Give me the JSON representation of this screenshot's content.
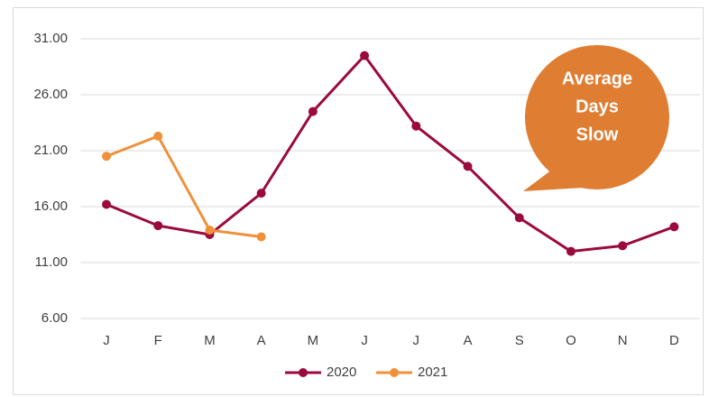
{
  "chart_data": {
    "type": "line",
    "categories": [
      "J",
      "F",
      "M",
      "A",
      "M",
      "J",
      "J",
      "A",
      "S",
      "O",
      "N",
      "D"
    ],
    "series": [
      {
        "name": "2020",
        "color": "#9b0a3c",
        "values": [
          16.2,
          14.3,
          13.5,
          17.2,
          24.5,
          29.5,
          23.2,
          19.6,
          15.0,
          12.0,
          12.5,
          14.2
        ]
      },
      {
        "name": "2021",
        "color": "#f0913a",
        "values": [
          20.5,
          22.3,
          13.9,
          13.3,
          null,
          null,
          null,
          null,
          null,
          null,
          null,
          null
        ]
      }
    ],
    "ylim": [
      6,
      31
    ],
    "yticks": [
      {
        "value": 6,
        "label": "6.00"
      },
      {
        "value": 11,
        "label": "11.00"
      },
      {
        "value": 16,
        "label": "16.00"
      },
      {
        "value": 21,
        "label": "21.00"
      },
      {
        "value": 26,
        "label": "26.00"
      },
      {
        "value": 31,
        "label": "31.00"
      }
    ],
    "grid": true,
    "legend": "bottom",
    "annotation": {
      "lines": [
        "Average",
        "Days",
        "Slow"
      ],
      "color": "#df7d33"
    }
  }
}
